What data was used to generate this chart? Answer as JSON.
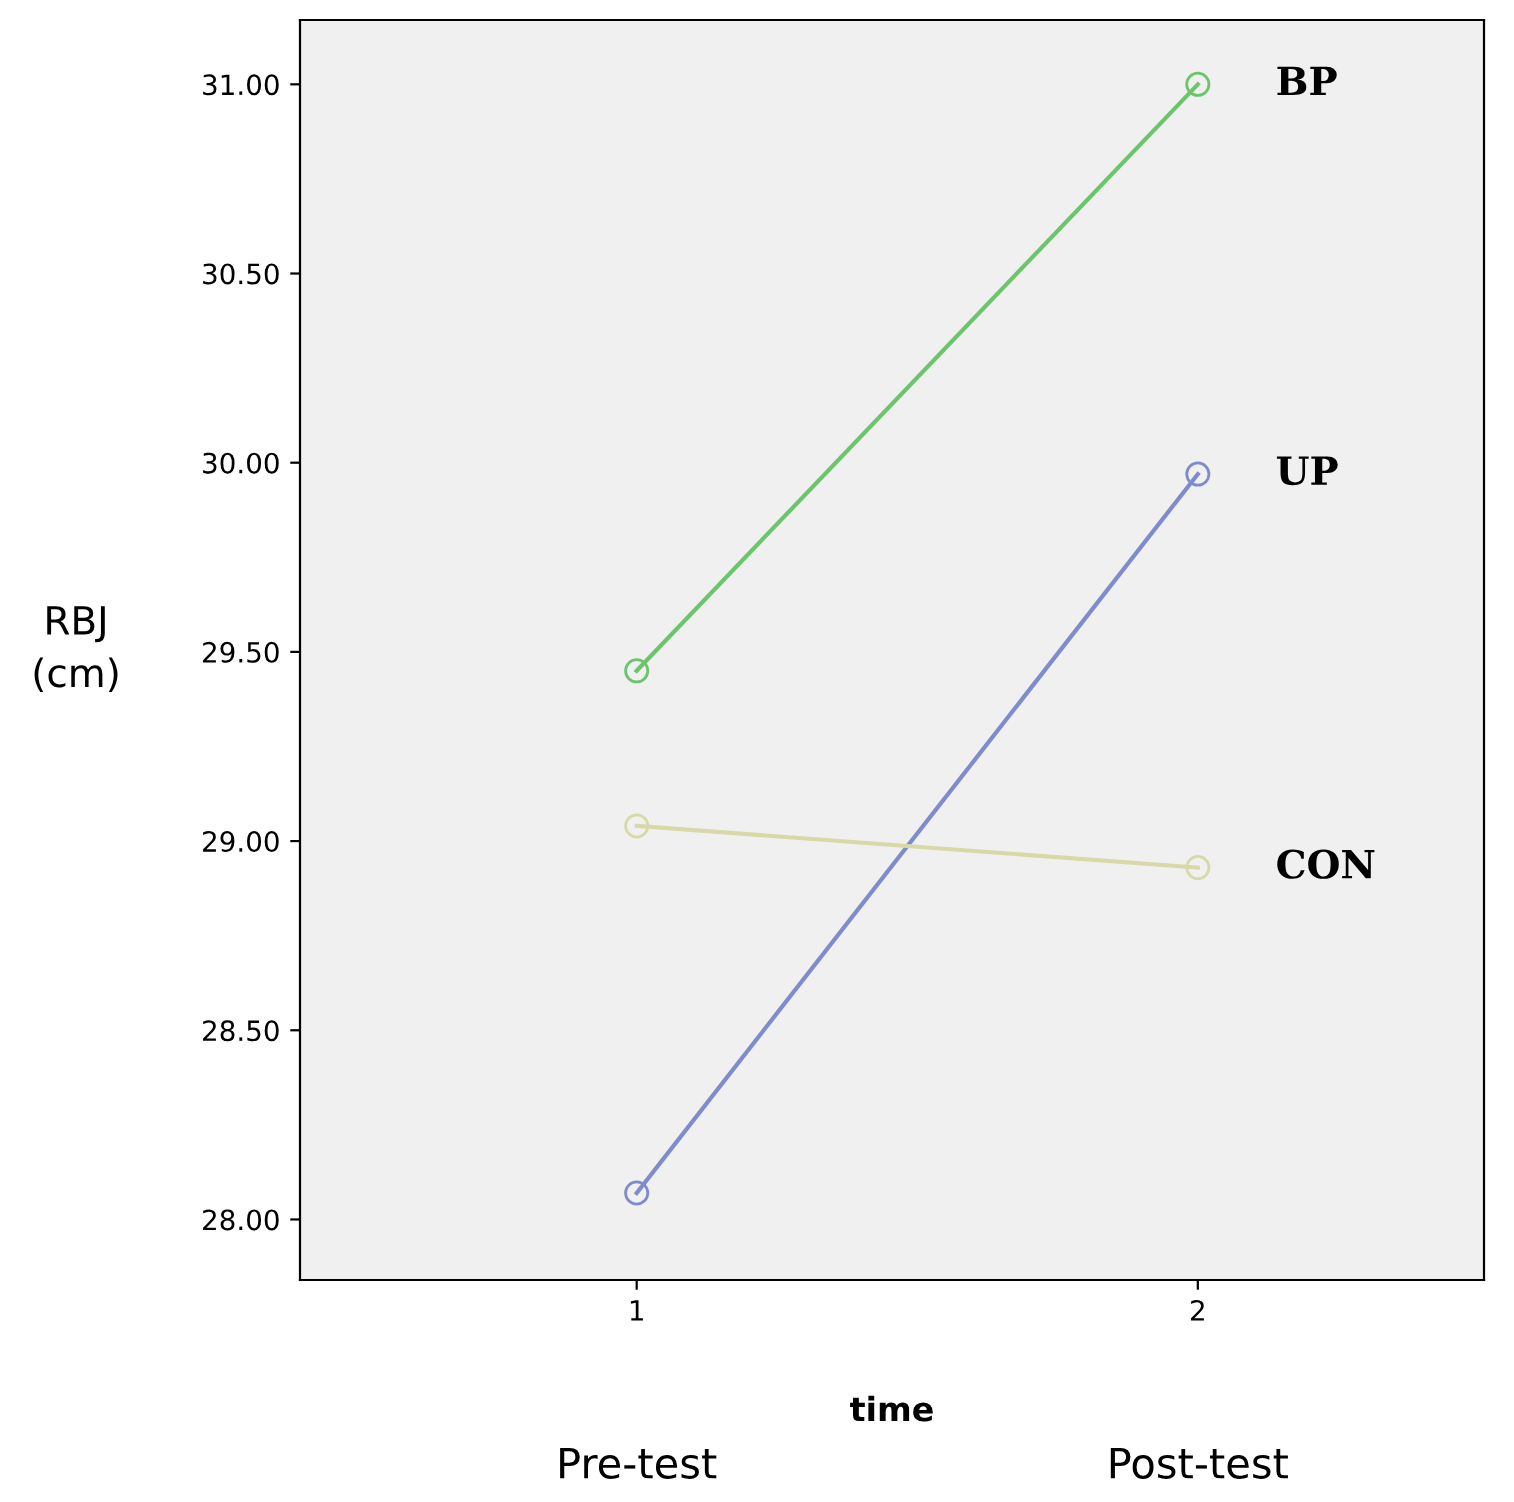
{
  "chart_data": {
    "type": "line",
    "xlabel": "time",
    "ylabel": "RBJ\n(cm)",
    "x": [
      1,
      2
    ],
    "series": [
      {
        "name": "BP",
        "color": "#6cc56c",
        "values": [
          29.45,
          31.0
        ]
      },
      {
        "name": "UP",
        "color": "#7f8ccc",
        "values": [
          28.07,
          29.97
        ]
      },
      {
        "name": "CON",
        "color": "#d9d9a8",
        "values": [
          29.04,
          28.93
        ]
      }
    ],
    "xlim": [
      0.4,
      2.51
    ],
    "ylim": [
      27.84,
      31.17
    ],
    "xticks": [
      1,
      2
    ],
    "yticks": [
      {
        "value": 28.0,
        "label": "28.00"
      },
      {
        "value": 28.5,
        "label": "28.50"
      },
      {
        "value": 29.0,
        "label": "29.00"
      },
      {
        "value": 29.5,
        "label": "29.50"
      },
      {
        "value": 30.0,
        "label": "30.00"
      },
      {
        "value": 30.5,
        "label": "30.50"
      },
      {
        "value": 31.0,
        "label": "31.00"
      }
    ],
    "annotations": [
      "Pre-test",
      "Post-test"
    ],
    "marker": "circle",
    "line_style": "solid",
    "grid": false,
    "legend": false
  }
}
